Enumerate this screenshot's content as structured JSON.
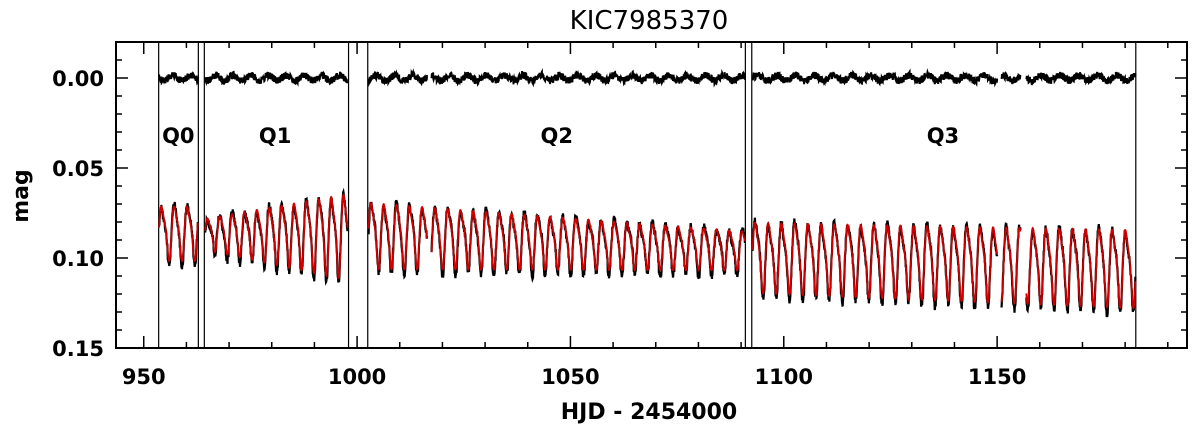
{
  "chart_data": {
    "type": "line",
    "title": "KIC7985370",
    "xlabel": "HJD - 2454000",
    "ylabel": "mag",
    "xlim": [
      943.5,
      1194.5
    ],
    "ylim": [
      0.15,
      -0.02
    ],
    "y_axis_inverted": true,
    "x_ticks": [
      950,
      1000,
      1050,
      1100,
      1150
    ],
    "x_tick_labels": [
      "950",
      "1000",
      "1050",
      "1100",
      "1150"
    ],
    "y_ticks": [
      0.0,
      0.05,
      0.1,
      0.15
    ],
    "y_tick_labels": [
      "0.00",
      "0.05",
      "0.10",
      "0.15"
    ],
    "grid": false,
    "series_colors": {
      "observed": "#000000",
      "model": "#cc0000",
      "residual": "#000000",
      "boundary": "#000000"
    },
    "quarter_boundaries": [
      953.5,
      962.8,
      964.2,
      998.0,
      1002.5,
      1091.0,
      1092.5,
      1182.5
    ],
    "quarter_labels": [
      {
        "text": "Q0",
        "x": 958.1,
        "y": 0.036
      },
      {
        "text": "Q1",
        "x": 980.8,
        "y": 0.036
      },
      {
        "text": "Q2",
        "x": 1046.8,
        "y": 0.036
      },
      {
        "text": "Q3",
        "x": 1137.3,
        "y": 0.036
      }
    ],
    "segments": [
      {
        "name": "",
        "quarter": "Q0",
        "t_start": 953.6,
        "t_end": 962.7,
        "period": 3.0,
        "baseline": 0.085,
        "amplitude": 0.014,
        "residual_level": 0.0
      },
      {
        "name": "",
        "quarter": "Q1",
        "t_start": 964.4,
        "t_end": 997.8,
        "period": 2.9,
        "baseline": [
          0.086,
          0.086
        ],
        "amplitude": [
          0.008,
          0.022
        ],
        "residual_level": 0.0
      },
      {
        "name": "",
        "quarter": "Q2",
        "t_start": 1002.7,
        "t_end": 1090.9,
        "period": 3.0,
        "baseline": [
          0.086,
          0.095
        ],
        "amplitude": [
          0.017,
          0.01
        ],
        "residual_level": 0.0
      },
      {
        "name": "",
        "quarter": "Q3",
        "t_start": 1092.7,
        "t_end": 1182.4,
        "period": 3.1,
        "baseline": [
          0.098,
          0.104
        ],
        "amplitude": [
          0.018,
          0.02
        ],
        "residual_level": 0.0
      }
    ],
    "data_gaps": [
      [
        1016.4,
        1017.4
      ],
      [
        1150.0,
        1151.0
      ],
      [
        1155.5,
        1156.8
      ]
    ]
  }
}
